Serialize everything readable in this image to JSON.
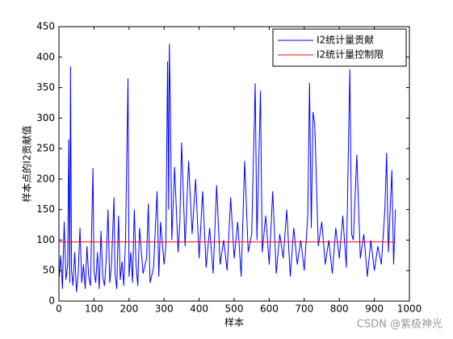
{
  "chart_data": {
    "type": "line",
    "xlabel": "样本",
    "ylabel": "样本点的I2贡献值",
    "watermark": "CSDN @紫极神光",
    "xlim": [
      0,
      1000
    ],
    "xticks": [
      0,
      100,
      200,
      300,
      400,
      500,
      600,
      700,
      800,
      900,
      1000
    ],
    "ylim": [
      0,
      450
    ],
    "yticks": [
      0,
      50,
      100,
      150,
      200,
      250,
      300,
      350,
      400,
      450
    ],
    "legend": "upper right",
    "series": [
      {
        "name": "I2统计量贡献",
        "color": "#0000ff",
        "x": [
          1,
          5,
          10,
          15,
          20,
          25,
          28,
          31,
          33,
          36,
          40,
          45,
          50,
          55,
          60,
          65,
          70,
          75,
          80,
          85,
          90,
          97,
          100,
          105,
          110,
          115,
          120,
          125,
          130,
          135,
          140,
          145,
          150,
          157,
          160,
          165,
          170,
          175,
          180,
          185,
          190,
          197,
          200,
          205,
          210,
          215,
          220,
          225,
          230,
          240,
          250,
          255,
          260,
          270,
          280,
          285,
          290,
          300,
          305,
          310,
          313,
          315,
          318,
          322,
          330,
          340,
          345,
          350,
          360,
          365,
          370,
          380,
          390,
          400,
          410,
          420,
          430,
          440,
          450,
          460,
          470,
          480,
          490,
          500,
          510,
          520,
          530,
          540,
          550,
          560,
          565,
          575,
          580,
          590,
          600,
          610,
          620,
          630,
          640,
          650,
          660,
          670,
          680,
          690,
          700,
          710,
          715,
          720,
          725,
          730,
          740,
          750,
          760,
          770,
          780,
          790,
          800,
          810,
          820,
          830,
          835,
          840,
          850,
          860,
          870,
          880,
          890,
          900,
          910,
          920,
          930,
          935,
          940,
          950,
          955,
          960
        ],
        "values": [
          40,
          75,
          20,
          130,
          35,
          60,
          265,
          30,
          385,
          50,
          25,
          80,
          15,
          45,
          120,
          30,
          60,
          20,
          90,
          40,
          25,
          218,
          50,
          30,
          80,
          20,
          115,
          40,
          25,
          70,
          150,
          30,
          60,
          170,
          45,
          20,
          140,
          35,
          65,
          25,
          100,
          365,
          40,
          80,
          30,
          150,
          60,
          25,
          120,
          45,
          70,
          160,
          30,
          55,
          180,
          40,
          130,
          60,
          90,
          393,
          150,
          422,
          320,
          100,
          220,
          80,
          130,
          260,
          90,
          160,
          230,
          110,
          200,
          70,
          180,
          55,
          120,
          45,
          190,
          60,
          100,
          50,
          170,
          70,
          130,
          40,
          230,
          80,
          110,
          357,
          100,
          345,
          80,
          140,
          60,
          180,
          45,
          110,
          70,
          150,
          40,
          120,
          60,
          100,
          50,
          140,
          358,
          120,
          310,
          290,
          90,
          130,
          60,
          100,
          45,
          120,
          70,
          140,
          55,
          380,
          110,
          100,
          240,
          70,
          110,
          40,
          100,
          50,
          90,
          60,
          150,
          243,
          80,
          215,
          60,
          150
        ]
      },
      {
        "name": "I2统计量控制限",
        "color": "#ff0000",
        "x": [
          1,
          960
        ],
        "values": [
          97,
          97
        ]
      }
    ]
  }
}
